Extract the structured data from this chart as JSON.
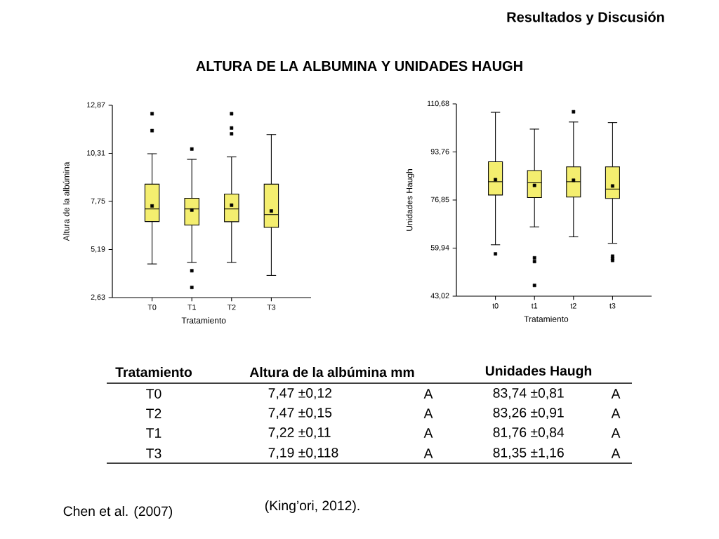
{
  "chart_data": [
    {
      "type": "box",
      "title": "ALTURA DE LA ALBUMINA Y UNIDADES HAUGH",
      "xlabel": "Tratamiento",
      "ylabel": "Altura de la albúmina",
      "categories": [
        "T0",
        "T1",
        "T2",
        "T3"
      ],
      "color": "#f4ee6f",
      "marker": "square",
      "ylim": [
        2.63,
        12.87
      ],
      "yticks": [
        {
          "value": 2.63,
          "label": "2,63"
        },
        {
          "value": 5.19,
          "label": "5,19"
        },
        {
          "value": 7.75,
          "label": "7,75"
        },
        {
          "value": 10.31,
          "label": "10,31"
        },
        {
          "value": 12.87,
          "label": "12,87"
        }
      ],
      "boxes": [
        {
          "low": 4.42,
          "q1": 6.68,
          "median": 7.35,
          "q3": 8.67,
          "high": 10.29,
          "mean": 7.51,
          "outliers": [
            12.42,
            11.52
          ]
        },
        {
          "low": 4.5,
          "q1": 6.49,
          "median": 7.35,
          "q3": 7.92,
          "high": 9.99,
          "mean": 7.29,
          "outliers": [
            10.54,
            4.06,
            3.17
          ]
        },
        {
          "low": 4.5,
          "q1": 6.67,
          "median": 7.35,
          "q3": 8.14,
          "high": 10.12,
          "mean": 7.55,
          "outliers": [
            12.42,
            11.66,
            11.35
          ]
        },
        {
          "low": 3.81,
          "q1": 6.37,
          "median": 7.05,
          "q3": 8.67,
          "high": 11.31,
          "mean": 7.24
        }
      ]
    },
    {
      "type": "box",
      "title": "Resultados y Discusión",
      "xlabel": "Tratamiento",
      "ylabel": "Unidades Haugh",
      "categories": [
        "t0",
        "t1",
        "t2",
        "t3"
      ],
      "color": "#f4ee6f",
      "marker": "square",
      "ylim": [
        43.02,
        110.68
      ],
      "yticks": [
        {
          "value": 43.02,
          "label": "43,02"
        },
        {
          "value": 59.94,
          "label": "59,94"
        },
        {
          "value": 76.85,
          "label": "76,85"
        },
        {
          "value": 93.76,
          "label": "93,76"
        },
        {
          "value": 110.68,
          "label": "110,68"
        }
      ],
      "boxes": [
        {
          "low": 61.1,
          "q1": 78.6,
          "median": 83.3,
          "q3": 90.3,
          "high": 107.7,
          "mean": 84.0,
          "outliers": [
            57.9
          ]
        },
        {
          "low": 67.4,
          "q1": 77.7,
          "median": 82.9,
          "q3": 87.2,
          "high": 101.8,
          "mean": 82.0,
          "outliers": [
            56.5,
            55.2,
            46.8
          ]
        },
        {
          "low": 63.9,
          "q1": 77.9,
          "median": 83.3,
          "q3": 88.5,
          "high": 104.3,
          "mean": 83.8,
          "outliers": [
            107.9
          ]
        },
        {
          "low": 61.6,
          "q1": 77.4,
          "median": 80.7,
          "q3": 88.5,
          "high": 104.1,
          "mean": 81.8,
          "outliers": [
            57.1,
            56.3,
            55.6
          ]
        }
      ]
    },
    {
      "type": "other",
      "annotations": [
        "Tratamiento",
        "Altura de la albúmina mm",
        "Unidades Haugh",
        "T0",
        "7,47 ±0,12",
        "A",
        "83,74 ±0,81",
        "A",
        "T2",
        "7,47 ±0,15",
        "A",
        "83,26 ±0,91",
        "A",
        "T1",
        "7,22 ±0,11",
        "A",
        "81,76 ±0,84",
        "A",
        "T3",
        "7,19 ±0,118",
        "A",
        "81,35 ±1,16",
        "A",
        "Chen et al. (2007)",
        "(King’ori, 2012)."
      ]
    }
  ]
}
